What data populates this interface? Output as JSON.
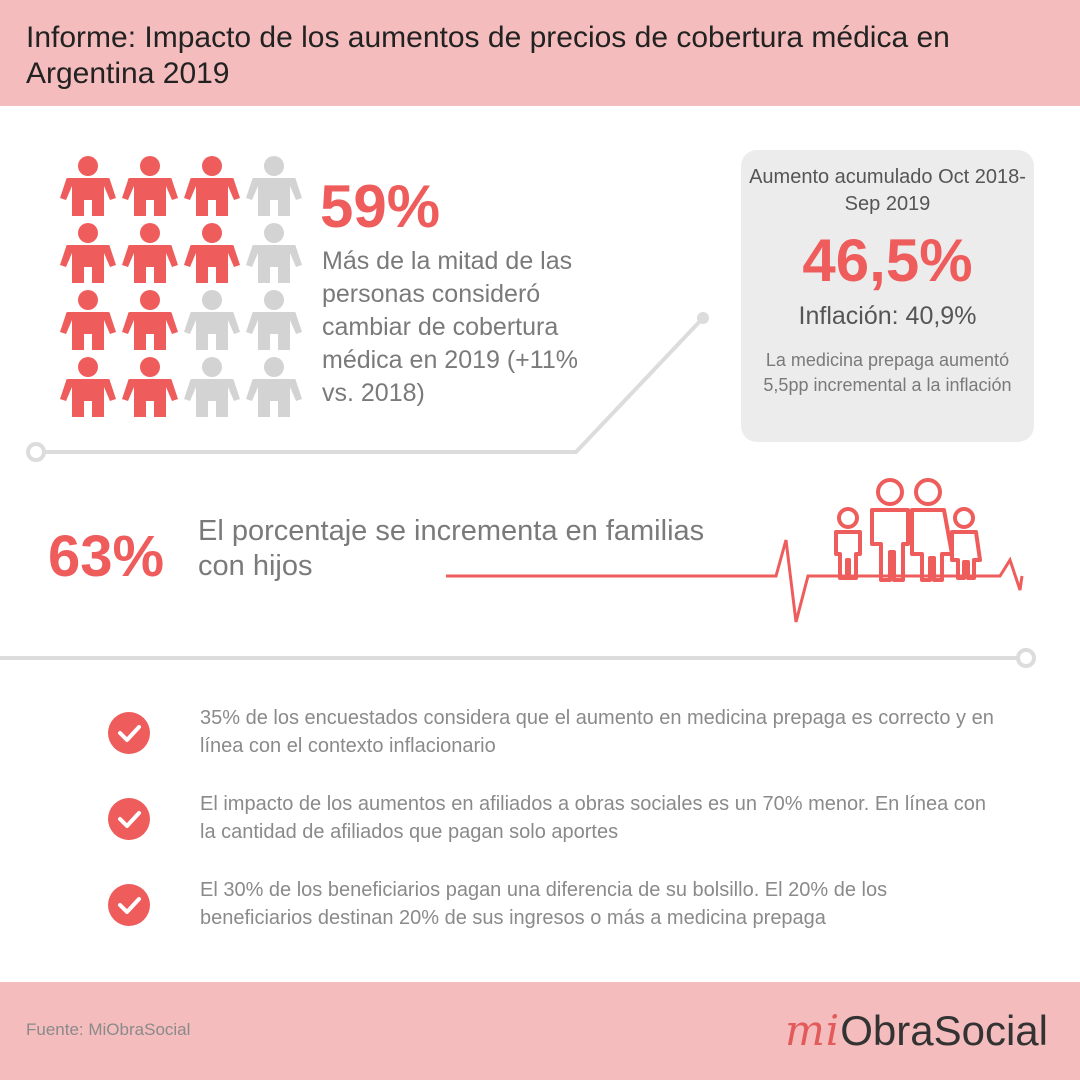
{
  "header": {
    "title": "Informe: Impacto de los aumentos de precios de cobertura médica en Argentina 2019"
  },
  "people_grid": {
    "rows": [
      [
        "highlight",
        "highlight",
        "highlight",
        "muted"
      ],
      [
        "highlight",
        "highlight",
        "highlight",
        "muted"
      ],
      [
        "highlight",
        "highlight",
        "muted",
        "muted"
      ],
      [
        "highlight",
        "highlight",
        "muted",
        "muted"
      ]
    ],
    "highlight_color": "#ef5c5c",
    "muted_color": "#d3d3d3"
  },
  "stat_59": {
    "value": "59%",
    "description": "Más de la mitad de las personas consideró cambiar de cobertura médica en 2019 (+11% vs. 2018)"
  },
  "card": {
    "title": "Aumento acumulado Oct 2018-Sep 2019",
    "value": "46,5%",
    "inflation": "Inflación: 40,9%",
    "note": "La medicina prepaga aumentó 5,5pp incremental a la inflación"
  },
  "stat_63": {
    "value": "63%",
    "description": "El porcentaje se incrementa en familias con hijos"
  },
  "bullets": [
    {
      "text": "35% de los encuestados considera que el aumento en medicina prepaga es correcto y en línea con el contexto inflacionario"
    },
    {
      "text": "El impacto de los aumentos en afiliados a obras sociales es un 70% menor. En línea con la cantidad de afiliados que pagan solo aportes"
    },
    {
      "text": "El 30% de los beneficiarios pagan una diferencia de su bolsillo. El 20% de los beneficiarios destinan 20% de sus ingresos o más a medicina prepaga"
    }
  ],
  "footer": {
    "source": "Fuente: MiObraSocial",
    "logo_mi": "mi",
    "logo_rest": "ObraSocial"
  },
  "colors": {
    "accent": "#ef5c5c",
    "header_bg": "#f5bcbd",
    "card_bg": "#ececec",
    "line": "#dcdcdc"
  }
}
